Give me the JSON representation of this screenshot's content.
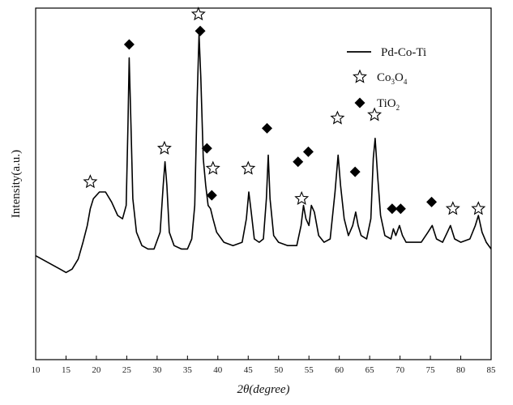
{
  "chart_data": {
    "type": "line",
    "xlabel": "2θ(degree)",
    "ylabel": "Intensity(a.u.)",
    "xlim": [
      10,
      85
    ],
    "x_ticks": [
      10,
      15,
      20,
      25,
      30,
      35,
      40,
      45,
      50,
      55,
      60,
      65,
      70,
      75,
      80,
      85
    ],
    "x_tick_labels": [
      "10",
      "15",
      "20",
      "25",
      "30",
      "35",
      "40",
      "45",
      "50",
      "55",
      "60",
      "65",
      "70",
      "75",
      "80",
      "85"
    ],
    "ylim": [
      0,
      100
    ],
    "y_ticks_shown": false,
    "grid": false,
    "legend_position": "top-right",
    "series": [
      {
        "name": "Pd-Co-Ti",
        "color": "#000000",
        "x": [
          10,
          11,
          12,
          13,
          14,
          15,
          16,
          17,
          17.8,
          18.5,
          19,
          19.5,
          20.5,
          21.5,
          22.5,
          23.5,
          24.3,
          24.9,
          25.2,
          25.4,
          25.7,
          26,
          26.6,
          27.5,
          28.5,
          29.5,
          30.5,
          31,
          31.3,
          31.6,
          32,
          32.8,
          34,
          35,
          35.7,
          36.2,
          36.6,
          36.9,
          37.2,
          37.6,
          38,
          38.4,
          38.8,
          39.2,
          39.8,
          41,
          42.5,
          44,
          44.7,
          45.1,
          45.5,
          46,
          46.8,
          47.5,
          48,
          48.3,
          48.6,
          49.2,
          50,
          51.5,
          53,
          53.7,
          54.1,
          54.5,
          55,
          55.4,
          55.9,
          56.6,
          57.5,
          58.5,
          59.3,
          59.8,
          60.2,
          60.8,
          61.5,
          62.2,
          62.7,
          63.1,
          63.6,
          64.5,
          65.2,
          65.6,
          65.9,
          66.3,
          66.8,
          67.5,
          68.5,
          68.9,
          69.3,
          69.9,
          70.4,
          71,
          72,
          73.5,
          74.6,
          75.3,
          76,
          77,
          77.8,
          78.3,
          79,
          80,
          81.5,
          82.4,
          82.9,
          83.5,
          84.2,
          85
        ],
        "y": [
          31,
          30,
          29,
          28,
          27,
          26,
          27,
          30,
          35,
          40,
          45,
          48,
          50,
          50,
          47,
          43,
          42,
          46,
          70,
          90,
          70,
          48,
          38,
          34,
          33,
          33,
          38,
          52,
          59,
          52,
          38,
          34,
          33,
          33,
          36,
          46,
          78,
          97,
          84,
          60,
          52,
          46,
          45,
          42,
          38,
          35,
          34,
          35,
          42,
          50,
          44,
          36,
          35,
          36,
          48,
          61,
          48,
          37,
          35,
          34,
          34,
          40,
          46,
          42,
          40,
          46,
          44,
          37,
          35,
          36,
          50,
          61,
          52,
          42,
          37,
          40,
          44,
          40,
          37,
          36,
          42,
          60,
          66,
          55,
          43,
          37,
          36,
          39,
          37,
          40,
          37,
          35,
          35,
          35,
          38,
          40,
          36,
          35,
          38,
          40,
          36,
          35,
          36,
          40,
          43,
          38,
          35,
          33
        ]
      }
    ],
    "legend": [
      {
        "marker": "line",
        "label": "Pd-Co-Ti"
      },
      {
        "marker": "star",
        "label_main": "Co",
        "label_sub1": "3",
        "label_mid": "O",
        "label_sub2": "4"
      },
      {
        "marker": "diamond",
        "label_main": "TiO",
        "label_sub1": "2"
      }
    ],
    "annotations": {
      "star_x": [
        19,
        31.2,
        36.8,
        39.2,
        45,
        53.8,
        59.7,
        65.8,
        78.7,
        82.9
      ],
      "star_y": [
        53,
        63,
        103,
        57,
        57,
        48,
        72,
        73,
        45,
        45
      ],
      "diamond_x": [
        25.4,
        37.1,
        38.2,
        39,
        48.1,
        53.2,
        54.9,
        62.6,
        68.7,
        70.1,
        75.2
      ],
      "diamond_y": [
        94,
        98,
        63,
        49,
        69,
        59,
        62,
        56,
        45,
        45,
        47
      ]
    }
  }
}
